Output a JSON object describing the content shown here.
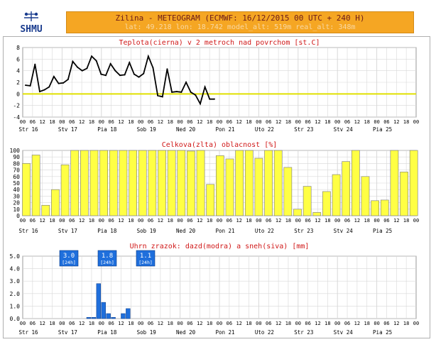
{
  "header": {
    "logo_text": "SHMU",
    "title": "Zilina - METEOGRAM (ECMWF: 16/12/2015 00 UTC + 240 H)",
    "subtitle": "lat: 49.218  lon: 18.742  model_alt: 519m  real_alt: 348m"
  },
  "colors": {
    "header_bg": "#f5a623",
    "title_red": "#d01818",
    "temp_line": "#000000",
    "zero_line": "#e0e000",
    "cloud_bar": "#ffff44",
    "precip_bar": "#1f6fdc",
    "grid": "#d8d8d8"
  },
  "time_axis": {
    "hour_labels": [
      "00",
      "06",
      "12",
      "18",
      "00",
      "06",
      "12",
      "18",
      "00",
      "06",
      "12",
      "18",
      "00",
      "06",
      "12",
      "18",
      "00",
      "06",
      "12",
      "18",
      "00",
      "06",
      "12",
      "18",
      "00",
      "06",
      "12",
      "18",
      "00",
      "06",
      "12",
      "18",
      "00",
      "06",
      "12",
      "18",
      "00",
      "06",
      "12",
      "18",
      "00"
    ],
    "day_labels": [
      "Str 16",
      "Stv 17",
      "Pia 18",
      "Sob 19",
      "Ned 20",
      "Pon 21",
      "Uto 22",
      "Str 23",
      "Stv 24",
      "Pia 25"
    ]
  },
  "chart_data": [
    {
      "type": "line",
      "title": "Teplota(cierna) v 2 metroch nad povrchom [st.C]",
      "ylim": [
        -4,
        8
      ],
      "yticks": [
        "8",
        "6",
        "4",
        "2",
        "0",
        "-2",
        "-4"
      ],
      "reference_line": 0,
      "x_step_hours": 3,
      "values": [
        1.5,
        1.4,
        5.1,
        0.4,
        0.7,
        1.2,
        3.0,
        1.8,
        1.9,
        2.5,
        5.6,
        4.6,
        4.0,
        4.4,
        6.5,
        5.7,
        3.4,
        3.2,
        5.2,
        4.0,
        3.2,
        3.3,
        5.4,
        3.4,
        2.9,
        3.5,
        6.5,
        4.5,
        -0.3,
        -0.5,
        4.3,
        0.3,
        0.4,
        0.3,
        2.0,
        0.3,
        -0.2,
        -1.7,
        1.2,
        -0.9,
        -0.9
      ]
    },
    {
      "type": "bar",
      "title": "Celkova(zlta) oblacnost [%]",
      "ylim": [
        0,
        100
      ],
      "yticks": [
        "100",
        "90",
        "80",
        "70",
        "60",
        "50",
        "40",
        "30",
        "20",
        "10",
        "0"
      ],
      "x_step_hours": 6,
      "values": [
        80,
        93,
        16,
        40,
        78,
        100,
        100,
        100,
        100,
        100,
        100,
        100,
        100,
        100,
        100,
        100,
        100,
        99,
        100,
        48,
        92,
        87,
        100,
        100,
        88,
        100,
        100,
        74,
        10,
        45,
        5,
        37,
        63,
        83,
        100,
        60,
        23,
        24,
        100,
        67,
        100
      ]
    },
    {
      "type": "bar",
      "title": "Uhrn zrazok: dazd(modra) a sneh(siva) [mm]",
      "ylim": [
        0,
        5.0
      ],
      "yticks": [
        "5.0",
        "4.0",
        "3.0",
        "2.0",
        "1.0",
        "0.0"
      ],
      "x_step_hours": 3,
      "bar_start_index": 5,
      "values": [
        0.1,
        0.1,
        2.8,
        1.3,
        0.4,
        0.1,
        0,
        0.4,
        0.8
      ],
      "daily_totals": [
        {
          "value": "3.0",
          "period": "[24h]"
        },
        {
          "value": "1.8",
          "period": "[24h]"
        },
        {
          "value": "1.1",
          "period": "[24h]"
        }
      ]
    }
  ]
}
